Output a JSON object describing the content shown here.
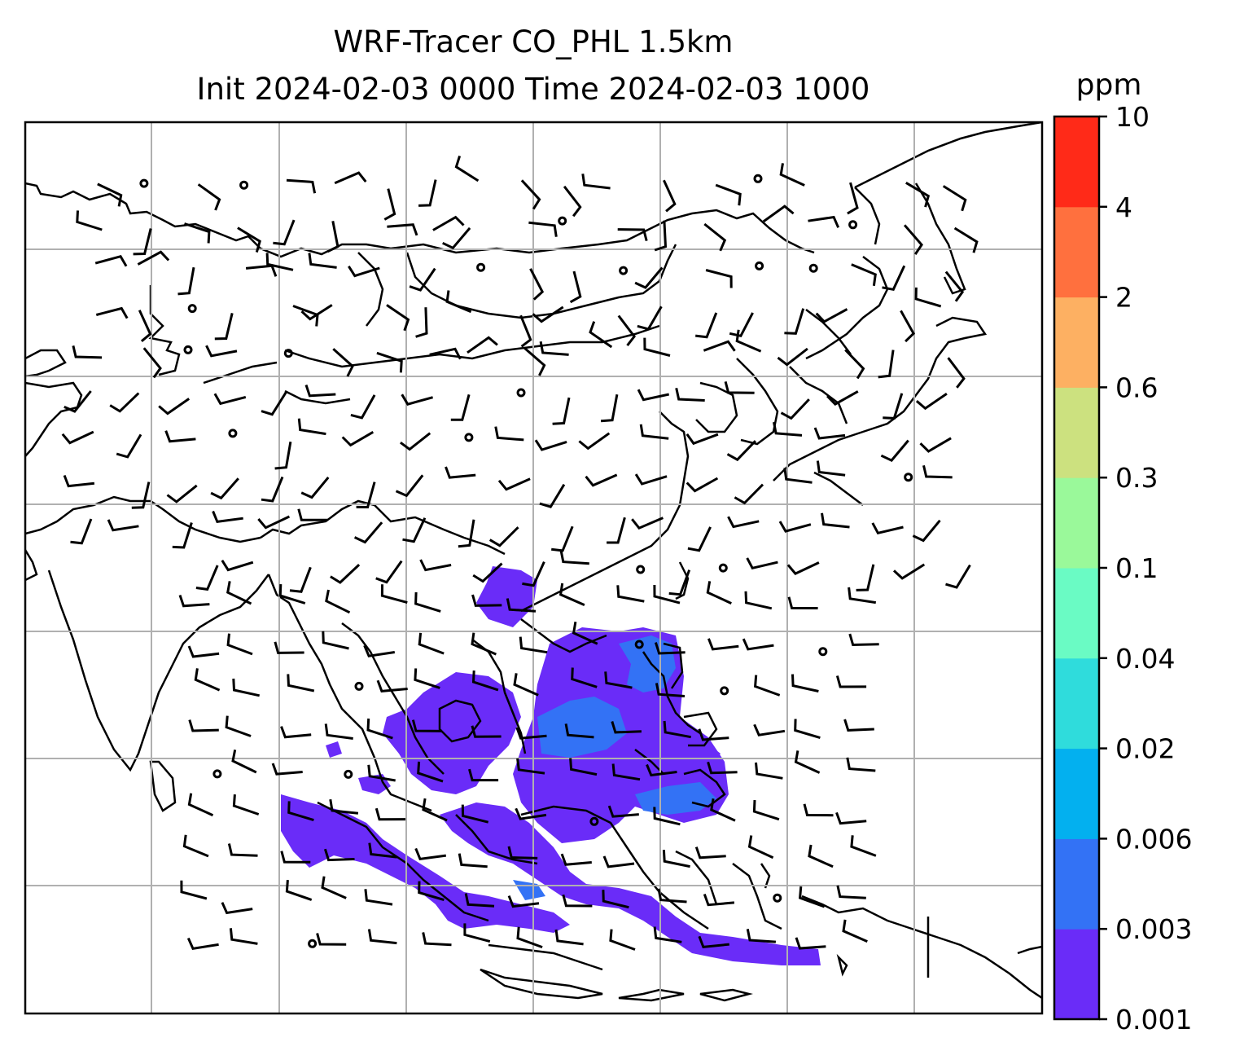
{
  "title": {
    "line1": "WRF-Tracer CO_PHL 1.5km",
    "line2": "Init 2024-02-03 0000 Time 2024-02-03 1000"
  },
  "colorbar": {
    "unit": "ppm",
    "levels": [
      "0.001",
      "0.003",
      "0.006",
      "0.02",
      "0.04",
      "0.1",
      "0.3",
      "0.6",
      "2",
      "4",
      "10"
    ],
    "colors": [
      "#6a2cf8",
      "#3372f5",
      "#03b0ef",
      "#2fdcdc",
      "#6afbc4",
      "#9af99a",
      "#cce17f",
      "#fdb062",
      "#ff703e",
      "#ff2a18"
    ]
  },
  "map": {
    "region": "South and East Asia, Maritime Continent",
    "gridlines": true,
    "tracer_plume_color": "#6a2cf8",
    "tracer_core_color": "#3372f5",
    "wind_barbs": true
  }
}
